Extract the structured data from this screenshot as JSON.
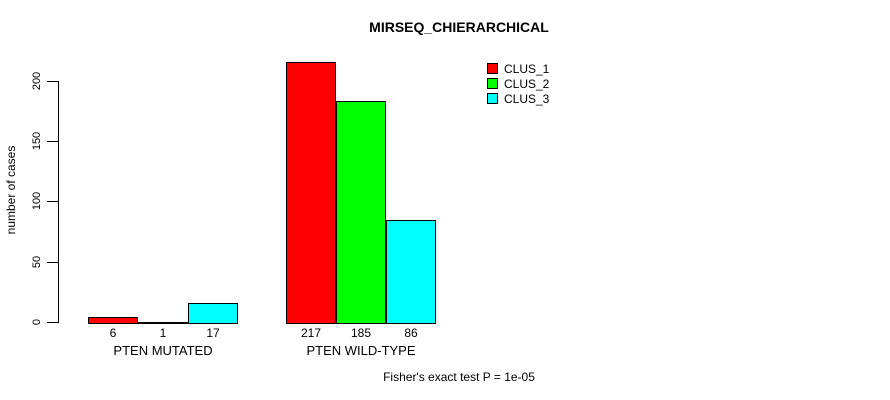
{
  "chart_data": {
    "type": "bar",
    "title": "MIRSEQ_CHIERARCHICAL",
    "xlabel": "",
    "ylabel": "number of cases",
    "categories": [
      "PTEN MUTATED",
      "PTEN WILD-TYPE"
    ],
    "series": [
      {
        "name": "CLUS_1",
        "color": "#ff0000",
        "values": [
          6,
          217
        ]
      },
      {
        "name": "CLUS_2",
        "color": "#00ff00",
        "values": [
          1,
          185
        ]
      },
      {
        "name": "CLUS_3",
        "color": "#00ffff",
        "values": [
          17,
          86
        ]
      }
    ],
    "bar_value_labels": [
      [
        "6",
        "1",
        "17"
      ],
      [
        "217",
        "185",
        "86"
      ]
    ],
    "yticks": [
      0,
      50,
      100,
      150,
      200
    ],
    "ylim": [
      0,
      217
    ],
    "grid": false,
    "legend_position": "top-right",
    "annotation": "Fisher's exact test P = 1e-05",
    "bar_border_color": "#000000",
    "background_color": "#ffffff"
  }
}
